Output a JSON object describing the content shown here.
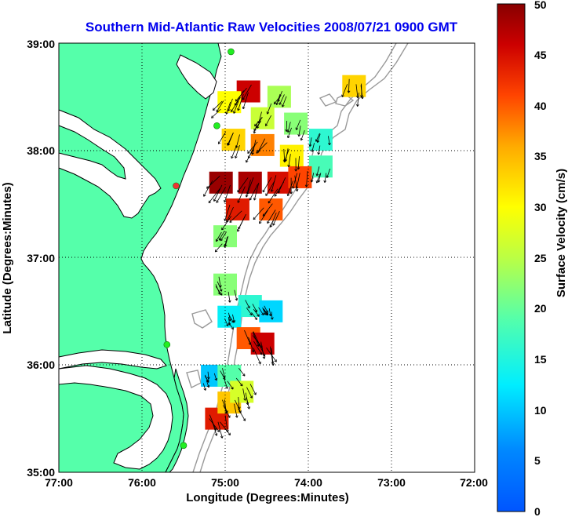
{
  "title": "Southern Mid-Atlantic Raw Velocities 2008/07/21 0900 GMT",
  "colors": {
    "title": "#0000ee",
    "land": "#55ffaa",
    "coast": "#000000",
    "bathymetry": "#999999",
    "arrow": "#000000",
    "site_marker": "#22ee22",
    "site_marker_active": "#ee3333"
  },
  "chart_data": {
    "type": "heatmap",
    "title": "Southern Mid-Atlantic Raw Velocities 2008/07/21 0900 GMT",
    "xlabel": "Longitude (Degrees:Minutes)",
    "ylabel": "Latitude (Degrees:Minutes)",
    "x_ticks": [
      "77:00",
      "76:00",
      "75:00",
      "74:00",
      "73:00",
      "72:00"
    ],
    "y_ticks": [
      "39:00",
      "38:00",
      "37:00",
      "36:00",
      "35:00"
    ],
    "xlim": [
      -77,
      -72
    ],
    "ylim": [
      35,
      39
    ],
    "grid": true,
    "colorbar": {
      "label": "Surface Velocity (cm/s)",
      "range": [
        0,
        50
      ],
      "ticks": [
        "0",
        "5",
        "10",
        "15",
        "20",
        "25",
        "30",
        "35",
        "40",
        "45",
        "50"
      ],
      "colormap": "jet"
    },
    "velocity_regions": [
      {
        "lon": -74.72,
        "lat": 38.55,
        "speed": 46
      },
      {
        "lon": -74.95,
        "lat": 38.45,
        "speed": 30
      },
      {
        "lon": -74.35,
        "lat": 38.5,
        "speed": 24
      },
      {
        "lon": -74.55,
        "lat": 38.3,
        "speed": 26
      },
      {
        "lon": -74.15,
        "lat": 38.25,
        "speed": 22
      },
      {
        "lon": -73.85,
        "lat": 38.1,
        "speed": 16
      },
      {
        "lon": -74.9,
        "lat": 38.1,
        "speed": 33
      },
      {
        "lon": -74.55,
        "lat": 38.05,
        "speed": 38
      },
      {
        "lon": -74.2,
        "lat": 37.95,
        "speed": 31
      },
      {
        "lon": -73.85,
        "lat": 37.85,
        "speed": 18
      },
      {
        "lon": -75.05,
        "lat": 37.7,
        "speed": 49
      },
      {
        "lon": -74.7,
        "lat": 37.7,
        "speed": 48
      },
      {
        "lon": -74.35,
        "lat": 37.7,
        "speed": 45
      },
      {
        "lon": -74.1,
        "lat": 37.75,
        "speed": 41
      },
      {
        "lon": -74.85,
        "lat": 37.45,
        "speed": 44
      },
      {
        "lon": -74.45,
        "lat": 37.45,
        "speed": 40
      },
      {
        "lon": -73.45,
        "lat": 38.6,
        "speed": 33
      },
      {
        "lon": -75.0,
        "lat": 37.2,
        "speed": 22
      },
      {
        "lon": -75.0,
        "lat": 36.75,
        "speed": 22
      },
      {
        "lon": -74.7,
        "lat": 36.55,
        "speed": 16
      },
      {
        "lon": -74.45,
        "lat": 36.5,
        "speed": 11
      },
      {
        "lon": -74.95,
        "lat": 36.45,
        "speed": 13
      },
      {
        "lon": -74.72,
        "lat": 36.25,
        "speed": 40
      },
      {
        "lon": -74.55,
        "lat": 36.2,
        "speed": 46
      },
      {
        "lon": -75.15,
        "lat": 35.9,
        "speed": 10
      },
      {
        "lon": -74.95,
        "lat": 35.9,
        "speed": 19
      },
      {
        "lon": -75.1,
        "lat": 35.5,
        "speed": 44
      },
      {
        "lon": -74.95,
        "lat": 35.65,
        "speed": 34
      },
      {
        "lon": -74.8,
        "lat": 35.75,
        "speed": 27
      }
    ],
    "radar_sites": [
      {
        "lon": -74.93,
        "lat": 38.92,
        "active": false
      },
      {
        "lon": -75.1,
        "lat": 38.23,
        "active": false
      },
      {
        "lon": -75.59,
        "lat": 37.67,
        "active": true
      },
      {
        "lon": -75.7,
        "lat": 36.19,
        "active": false
      },
      {
        "lon": -75.5,
        "lat": 35.25,
        "active": false
      }
    ]
  }
}
